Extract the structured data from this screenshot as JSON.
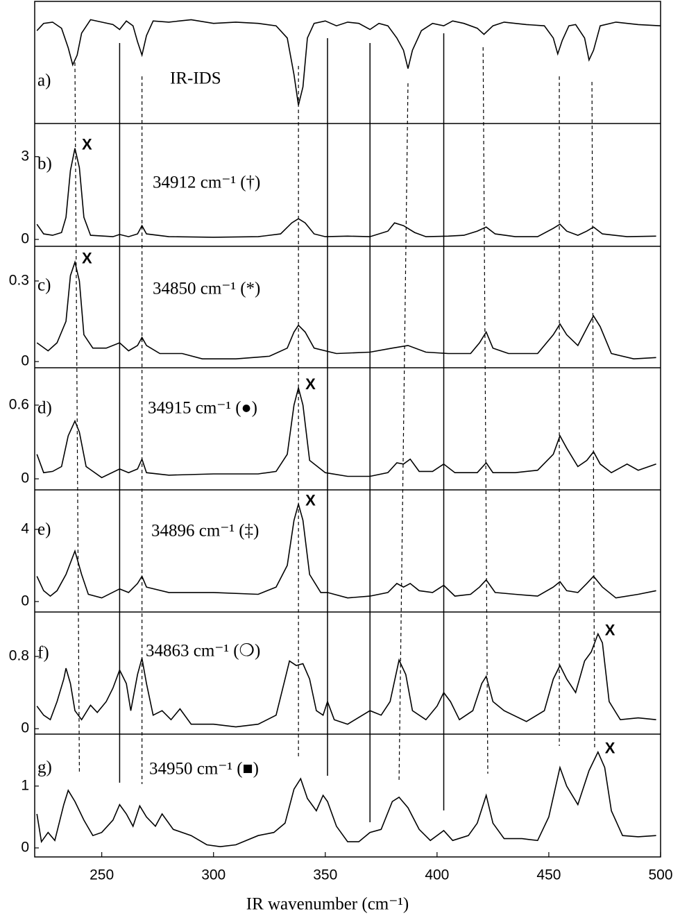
{
  "chart_data": [
    {
      "type": "line",
      "panel_label": "a)",
      "annotation": "IR-IDS",
      "color": "#000000",
      "xlim": [
        220,
        500
      ],
      "ylim": [
        0,
        1
      ],
      "x": [
        221,
        224,
        228,
        232,
        235,
        237,
        239,
        241,
        245,
        250,
        255,
        258,
        261,
        264,
        266,
        268,
        270,
        273,
        280,
        290,
        300,
        310,
        320,
        328,
        333,
        336,
        338,
        340,
        342,
        345,
        350,
        355,
        360,
        365,
        370,
        374,
        378,
        382,
        385,
        387,
        389,
        393,
        398,
        403,
        407,
        412,
        418,
        421,
        425,
        430,
        440,
        448,
        452,
        454,
        456,
        459,
        462,
        466,
        468,
        470,
        473,
        480,
        490,
        500
      ],
      "values": [
        0.76,
        0.82,
        0.83,
        0.78,
        0.62,
        0.48,
        0.56,
        0.74,
        0.85,
        0.83,
        0.81,
        0.77,
        0.84,
        0.8,
        0.67,
        0.56,
        0.72,
        0.84,
        0.83,
        0.85,
        0.82,
        0.83,
        0.82,
        0.8,
        0.7,
        0.4,
        0.15,
        0.3,
        0.7,
        0.82,
        0.84,
        0.8,
        0.83,
        0.82,
        0.77,
        0.82,
        0.8,
        0.7,
        0.6,
        0.45,
        0.6,
        0.76,
        0.82,
        0.8,
        0.84,
        0.82,
        0.78,
        0.73,
        0.8,
        0.83,
        0.81,
        0.8,
        0.7,
        0.57,
        0.68,
        0.8,
        0.81,
        0.7,
        0.52,
        0.6,
        0.8,
        0.83,
        0.81,
        0.8
      ]
    },
    {
      "type": "line",
      "panel_label": "b)",
      "annotation": "34912 cm⁻¹  (†)",
      "marker": "X",
      "marked_peak": 238,
      "color": "#000000",
      "xlim": [
        220,
        500
      ],
      "ylim": [
        -0.25,
        4.2
      ],
      "yticks": [
        0,
        3
      ],
      "x": [
        221,
        224,
        228,
        232,
        234,
        236,
        238,
        240,
        242,
        245,
        255,
        258,
        262,
        266,
        268,
        270,
        280,
        300,
        320,
        330,
        335,
        338,
        341,
        345,
        350,
        360,
        370,
        378,
        381,
        385,
        390,
        395,
        405,
        412,
        418,
        422,
        426,
        435,
        445,
        452,
        455,
        458,
        463,
        467,
        470,
        474,
        485,
        498
      ],
      "values": [
        0.55,
        0.2,
        0.15,
        0.25,
        0.8,
        2.5,
        3.3,
        2.6,
        0.8,
        0.15,
        0.1,
        0.18,
        0.1,
        0.2,
        0.5,
        0.2,
        0.1,
        0.08,
        0.1,
        0.2,
        0.6,
        0.75,
        0.6,
        0.2,
        0.1,
        0.12,
        0.1,
        0.3,
        0.6,
        0.5,
        0.25,
        0.1,
        0.12,
        0.15,
        0.3,
        0.45,
        0.2,
        0.1,
        0.1,
        0.4,
        0.55,
        0.3,
        0.15,
        0.3,
        0.45,
        0.2,
        0.1,
        0.12
      ]
    },
    {
      "type": "line",
      "panel_label": "c)",
      "annotation": "34850 cm⁻¹  (*)",
      "marker": "X",
      "marked_peak": 238,
      "color": "#000000",
      "xlim": [
        220,
        500
      ],
      "ylim": [
        -0.023,
        0.429
      ],
      "yticks": [
        0,
        0.3
      ],
      "x": [
        221,
        226,
        230,
        234,
        236,
        238,
        240,
        242,
        246,
        252,
        258,
        262,
        266,
        268,
        270,
        276,
        286,
        295,
        310,
        325,
        333,
        336,
        338,
        341,
        345,
        355,
        370,
        380,
        387,
        395,
        405,
        415,
        419,
        422,
        425,
        432,
        445,
        452,
        455,
        458,
        463,
        468,
        470,
        473,
        478,
        488,
        498
      ],
      "values": [
        0.07,
        0.04,
        0.07,
        0.15,
        0.32,
        0.37,
        0.3,
        0.1,
        0.05,
        0.05,
        0.07,
        0.04,
        0.06,
        0.09,
        0.06,
        0.03,
        0.03,
        0.01,
        0.01,
        0.02,
        0.05,
        0.11,
        0.135,
        0.11,
        0.05,
        0.03,
        0.035,
        0.05,
        0.06,
        0.035,
        0.03,
        0.03,
        0.07,
        0.11,
        0.05,
        0.03,
        0.03,
        0.1,
        0.14,
        0.1,
        0.06,
        0.14,
        0.17,
        0.13,
        0.03,
        0.01,
        0.015
      ]
    },
    {
      "type": "line",
      "panel_label": "d)",
      "annotation": "34915 cm⁻¹  (●)",
      "marker": "X",
      "marked_peak": 338,
      "color": "#000000",
      "xlim": [
        220,
        500
      ],
      "ylim": [
        -0.09,
        0.904
      ],
      "yticks": [
        0,
        0.6
      ],
      "x": [
        221,
        224,
        228,
        232,
        235,
        238,
        240,
        243,
        250,
        258,
        262,
        266,
        268,
        270,
        280,
        300,
        320,
        328,
        333,
        336,
        338,
        340,
        343,
        350,
        360,
        370,
        378,
        382,
        385,
        388,
        392,
        398,
        403,
        408,
        418,
        422,
        425,
        435,
        445,
        452,
        455,
        458,
        463,
        467,
        470,
        473,
        478,
        485,
        490,
        498
      ],
      "values": [
        0.2,
        0.05,
        0.06,
        0.1,
        0.35,
        0.47,
        0.38,
        0.1,
        0.01,
        0.08,
        0.05,
        0.08,
        0.16,
        0.05,
        0.03,
        0.04,
        0.04,
        0.06,
        0.2,
        0.6,
        0.74,
        0.6,
        0.15,
        0.05,
        0.02,
        0.02,
        0.05,
        0.13,
        0.12,
        0.16,
        0.06,
        0.06,
        0.12,
        0.05,
        0.05,
        0.13,
        0.05,
        0.05,
        0.07,
        0.2,
        0.35,
        0.25,
        0.1,
        0.15,
        0.22,
        0.12,
        0.05,
        0.12,
        0.07,
        0.12
      ]
    },
    {
      "type": "line",
      "panel_label": "e)",
      "annotation": "34896 cm⁻¹  (‡)",
      "marker": "X",
      "marked_peak": 338,
      "color": "#000000",
      "xlim": [
        220,
        500
      ],
      "ylim": [
        -0.58,
        6.19
      ],
      "yticks": [
        0,
        4
      ],
      "x": [
        221,
        224,
        227,
        230,
        234,
        238,
        241,
        244,
        250,
        258,
        262,
        266,
        268,
        270,
        280,
        300,
        320,
        328,
        333,
        336,
        338,
        340,
        343,
        348,
        351,
        360,
        370,
        378,
        382,
        385,
        388,
        392,
        398,
        403,
        408,
        415,
        419,
        422,
        426,
        435,
        445,
        452,
        455,
        458,
        463,
        467,
        470,
        474,
        480,
        490,
        498
      ],
      "values": [
        1.4,
        0.6,
        0.3,
        0.6,
        1.5,
        2.8,
        1.5,
        0.4,
        0.2,
        0.7,
        0.5,
        1.0,
        1.4,
        0.8,
        0.5,
        0.5,
        0.4,
        0.8,
        2.0,
        4.5,
        5.4,
        4.5,
        1.5,
        0.5,
        0.5,
        0.2,
        0.3,
        0.5,
        1.0,
        0.8,
        1.0,
        0.6,
        0.5,
        0.9,
        0.3,
        0.4,
        0.8,
        1.2,
        0.5,
        0.4,
        0.3,
        0.8,
        1.1,
        0.6,
        0.5,
        1.0,
        1.4,
        0.8,
        0.2,
        0.4,
        0.6
      ]
    },
    {
      "type": "line",
      "panel_label": "f)",
      "annotation": "34863 cm⁻¹  (❍)",
      "marker": "X",
      "marked_peak": 472,
      "color": "#000000",
      "xlim": [
        220,
        500
      ],
      "ylim": [
        -0.06,
        1.292
      ],
      "yticks": [
        0,
        0.8
      ],
      "x": [
        221,
        224,
        227,
        230,
        233,
        234,
        236,
        238,
        241,
        245,
        248,
        252,
        255,
        258,
        261,
        263,
        266,
        268,
        270,
        273,
        277,
        281,
        285,
        290,
        300,
        310,
        320,
        328,
        332,
        334,
        337,
        340,
        343,
        346,
        349,
        351,
        354,
        360,
        370,
        375,
        379,
        383,
        386,
        389,
        395,
        400,
        403,
        406,
        410,
        416,
        420,
        422,
        425,
        430,
        440,
        448,
        452,
        455,
        458,
        462,
        466,
        469,
        472,
        474,
        477,
        482,
        490,
        498
      ],
      "values": [
        0.25,
        0.15,
        0.1,
        0.3,
        0.55,
        0.67,
        0.5,
        0.2,
        0.1,
        0.26,
        0.18,
        0.3,
        0.45,
        0.65,
        0.5,
        0.2,
        0.6,
        0.78,
        0.5,
        0.15,
        0.2,
        0.1,
        0.22,
        0.05,
        0.05,
        0.02,
        0.05,
        0.15,
        0.55,
        0.75,
        0.7,
        0.72,
        0.55,
        0.2,
        0.15,
        0.3,
        0.1,
        0.05,
        0.2,
        0.15,
        0.3,
        0.76,
        0.6,
        0.2,
        0.1,
        0.25,
        0.4,
        0.3,
        0.1,
        0.2,
        0.5,
        0.58,
        0.3,
        0.2,
        0.08,
        0.2,
        0.55,
        0.7,
        0.55,
        0.4,
        0.75,
        0.85,
        1.05,
        0.95,
        0.3,
        0.1,
        0.12,
        0.1
      ]
    },
    {
      "type": "line",
      "panel_label": "g)",
      "annotation": "34950 cm⁻¹  (■)",
      "marker": "X",
      "marked_peak": 472,
      "color": "#000000",
      "xlim": [
        220,
        500
      ],
      "ylim": [
        -0.146,
        1.84
      ],
      "yticks": [
        0,
        1
      ],
      "xticks": [
        250,
        300,
        350,
        400,
        450,
        500
      ],
      "xlabel": "IR wavenumber (cm⁻¹)",
      "x": [
        221,
        223,
        226,
        229,
        233,
        235,
        238,
        242,
        246,
        250,
        255,
        258,
        261,
        264,
        267,
        270,
        274,
        277,
        282,
        290,
        297,
        303,
        310,
        320,
        327,
        332,
        336,
        339,
        342,
        346,
        349,
        351,
        355,
        360,
        365,
        370,
        375,
        380,
        383,
        387,
        392,
        397,
        403,
        407,
        414,
        418,
        422,
        425,
        430,
        438,
        445,
        450,
        455,
        458,
        463,
        468,
        472,
        475,
        478,
        483,
        490,
        498
      ],
      "values": [
        0.55,
        0.1,
        0.25,
        0.12,
        0.7,
        0.93,
        0.75,
        0.45,
        0.2,
        0.25,
        0.45,
        0.7,
        0.55,
        0.35,
        0.68,
        0.5,
        0.35,
        0.55,
        0.3,
        0.2,
        0.05,
        0.02,
        0.05,
        0.2,
        0.25,
        0.4,
        0.95,
        1.12,
        0.8,
        0.6,
        0.85,
        0.75,
        0.35,
        0.1,
        0.1,
        0.25,
        0.3,
        0.75,
        0.82,
        0.65,
        0.3,
        0.12,
        0.28,
        0.12,
        0.2,
        0.4,
        0.85,
        0.4,
        0.15,
        0.15,
        0.12,
        0.5,
        1.3,
        1.0,
        0.7,
        1.25,
        1.55,
        1.3,
        0.6,
        0.2,
        0.18,
        0.2
      ]
    }
  ],
  "guide_lines": {
    "solid": [
      258,
      351,
      370,
      403
    ],
    "dashed": [
      [
        238,
        240
      ],
      [
        268,
        268
      ],
      [
        338,
        338
      ],
      [
        387,
        383
      ],
      [
        420.6,
        422.7
      ],
      [
        454.7,
        454.7
      ],
      [
        469.3,
        470.5
      ]
    ]
  }
}
